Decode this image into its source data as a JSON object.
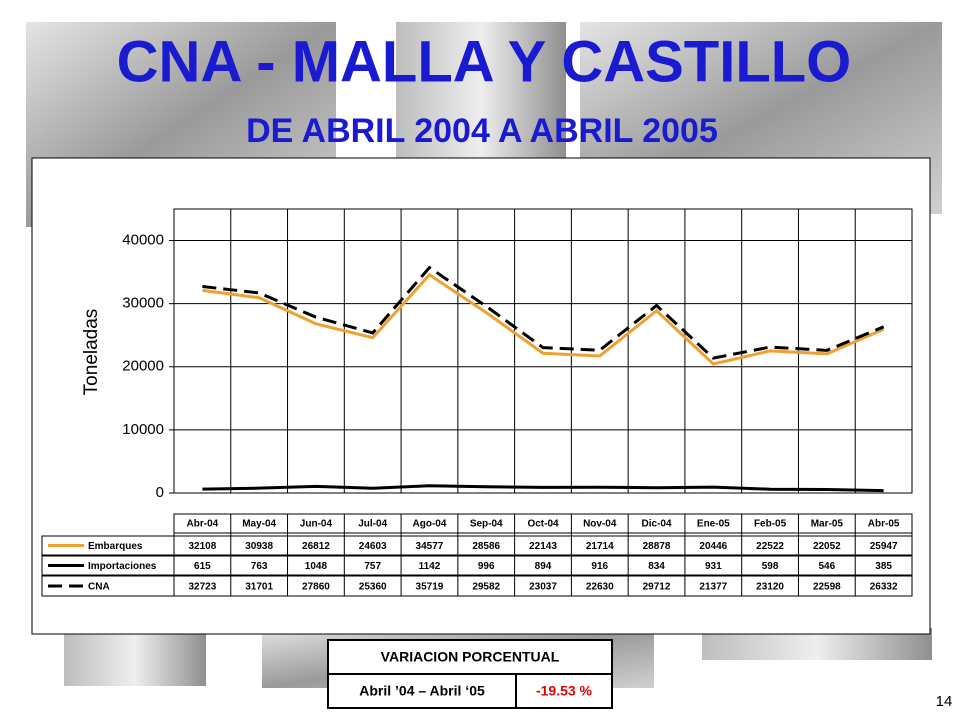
{
  "header": {
    "title": "CNA - MALLA Y CASTILLO",
    "subtitle": "DE ABRIL 2004 A ABRIL 2005"
  },
  "chart_data": {
    "type": "line",
    "ylabel": "Toneladas",
    "categories": [
      "Abr-04",
      "May-04",
      "Jun-04",
      "Jul-04",
      "Ago-04",
      "Sep-04",
      "Oct-04",
      "Nov-04",
      "Dic-04",
      "Ene-05",
      "Feb-05",
      "Mar-05",
      "Abr-05"
    ],
    "series": [
      {
        "name": "Embarques",
        "color": "#f0a030",
        "dash": false,
        "values": [
          32108,
          30938,
          26812,
          24603,
          34577,
          28586,
          22143,
          21714,
          28878,
          20446,
          22522,
          22052,
          25947
        ]
      },
      {
        "name": "Importaciones",
        "color": "#000000",
        "dash": false,
        "values": [
          615,
          763,
          1048,
          757,
          1142,
          996,
          894,
          916,
          834,
          931,
          598,
          546,
          385
        ]
      },
      {
        "name": "CNA",
        "color": "#000000",
        "dash": true,
        "values": [
          32723,
          31701,
          27860,
          25360,
          35719,
          29582,
          23037,
          22630,
          29712,
          21377,
          23120,
          22598,
          26332
        ]
      }
    ],
    "ylim": [
      0,
      45000
    ],
    "yticks": [
      0,
      10000,
      20000,
      30000,
      40000
    ],
    "grid": true
  },
  "variation": {
    "title": "VARIACION PORCENTUAL",
    "period": "Abril ’04 – Abril ‘05",
    "value": "-19.53 %"
  },
  "page_number": "14"
}
